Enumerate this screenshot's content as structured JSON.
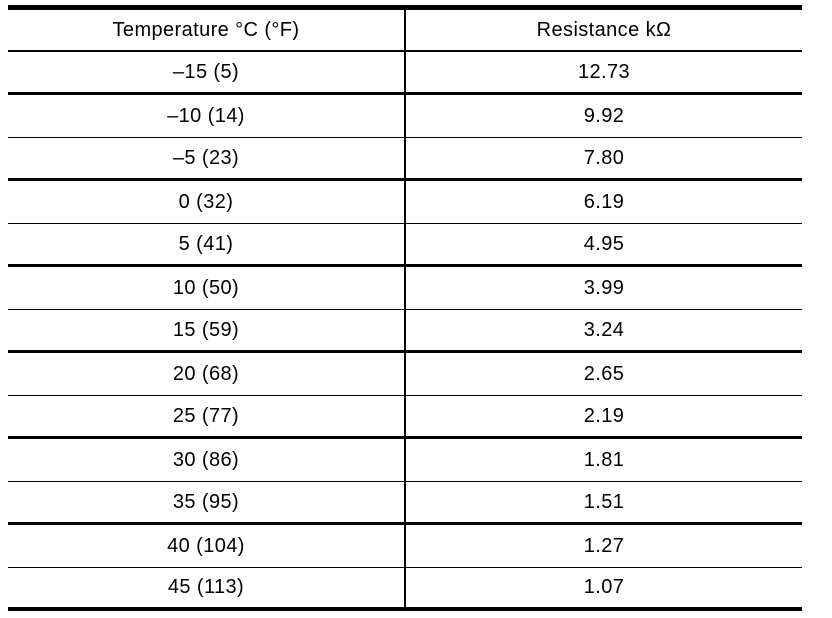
{
  "table": {
    "headers": {
      "temperature": "Temperature °C (°F)",
      "resistance": "Resistance kΩ"
    },
    "rows": [
      {
        "temp": "–15 (5)",
        "res": "12.73"
      },
      {
        "temp": "–10 (14)",
        "res": "9.92"
      },
      {
        "temp": "–5 (23)",
        "res": "7.80"
      },
      {
        "temp": "0 (32)",
        "res": "6.19"
      },
      {
        "temp": "5 (41)",
        "res": "4.95"
      },
      {
        "temp": "10 (50)",
        "res": "3.99"
      },
      {
        "temp": "15 (59)",
        "res": "3.24"
      },
      {
        "temp": "20 (68)",
        "res": "2.65"
      },
      {
        "temp": "25 (77)",
        "res": "2.19"
      },
      {
        "temp": "30 (86)",
        "res": "1.81"
      },
      {
        "temp": "35 (95)",
        "res": "1.51"
      },
      {
        "temp": "40 (104)",
        "res": "1.27"
      },
      {
        "temp": "45 (113)",
        "res": "1.07"
      }
    ],
    "colors": {
      "line": "#000000",
      "text": "#000000",
      "background": "#ffffff"
    }
  }
}
